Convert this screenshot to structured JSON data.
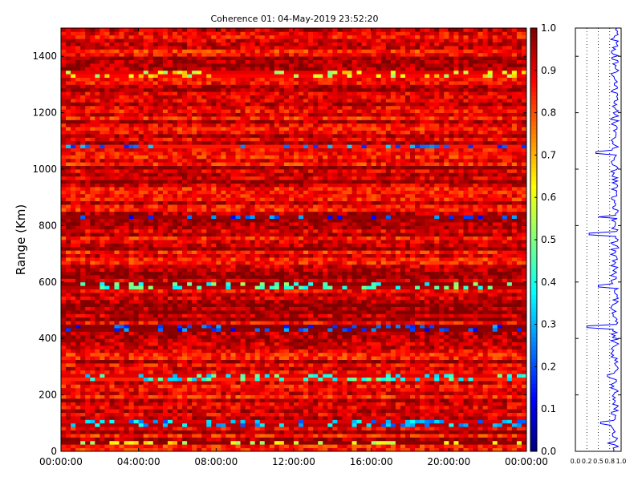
{
  "chart_data": [
    {
      "type": "heatmap",
      "title": "Coherence 01: 04-May-2019 23:52:20",
      "xlabel": "",
      "ylabel": "Range (Km)",
      "x_ticks": [
        "00:00:00",
        "04:00:00",
        "08:00:00",
        "12:00:00",
        "16:00:00",
        "20:00:00",
        "00:00:00"
      ],
      "y_ticks": [
        0,
        200,
        400,
        600,
        800,
        1000,
        1200,
        1400
      ],
      "ylim": [
        0,
        1500
      ],
      "colormap": "jet",
      "value_range": [
        0.0,
        1.0
      ],
      "typical_value_range": [
        0.7,
        1.0
      ],
      "low_coherence_bands_km": [
        {
          "range": 30,
          "value": 0.6
        },
        {
          "range": 100,
          "value": 0.3
        },
        {
          "range": 260,
          "value": 0.4
        },
        {
          "range": 440,
          "value": 0.2
        },
        {
          "range": 585,
          "value": 0.45
        },
        {
          "range": 830,
          "value": 0.2
        },
        {
          "range": 1080,
          "value": 0.25
        },
        {
          "range": 1340,
          "value": 0.6
        }
      ],
      "colorbar_ticks": [
        "0.0",
        "0.1",
        "0.2",
        "0.3",
        "0.4",
        "0.5",
        "0.6",
        "0.7",
        "0.8",
        "0.9",
        "1.0"
      ]
    },
    {
      "type": "line",
      "title": "",
      "x_ticks": [
        "0.0",
        "0.2",
        "0.5",
        "0.8",
        "1.0"
      ],
      "xlim": [
        0,
        1
      ],
      "ylim": [
        0,
        1500
      ],
      "grid": "dotted vertical at 0.25, 0.5, 0.75",
      "series_color": "#0000ff",
      "profile_dips": [
        {
          "range": 30,
          "value": 0.7
        },
        {
          "range": 100,
          "value": 0.55
        },
        {
          "range": 270,
          "value": 0.7
        },
        {
          "range": 440,
          "value": 0.25
        },
        {
          "range": 585,
          "value": 0.5
        },
        {
          "range": 770,
          "value": 0.3
        },
        {
          "range": 830,
          "value": 0.5
        },
        {
          "range": 1060,
          "value": 0.45
        },
        {
          "range": 1240,
          "value": 0.85
        },
        {
          "range": 1300,
          "value": 0.85
        },
        {
          "range": 1395,
          "value": 0.8
        }
      ]
    }
  ]
}
